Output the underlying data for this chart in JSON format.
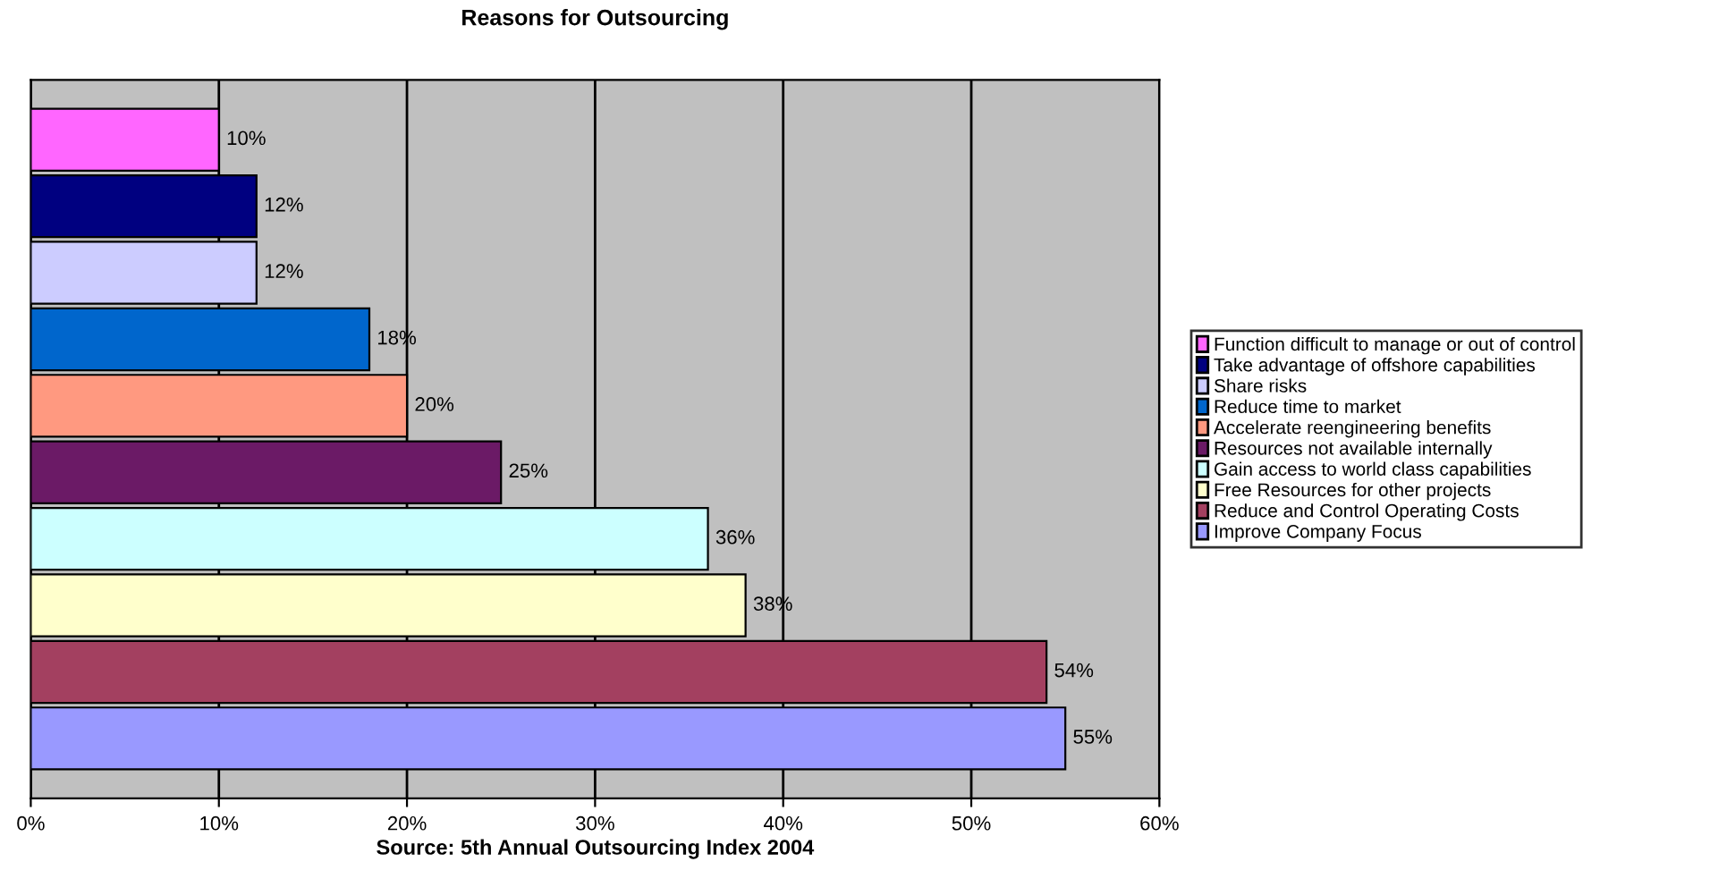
{
  "chart_data": {
    "type": "bar",
    "orientation": "horizontal",
    "title": "Reasons for Outsourcing",
    "xlabel": "Source: 5th Annual Outsourcing Index 2004",
    "categories": [
      null,
      null,
      null,
      null,
      null,
      null,
      null,
      null,
      null,
      null
    ],
    "series": [
      {
        "name": "Function difficult to manage or out of control",
        "color": "#ff66ff",
        "values": [
          10,
          null,
          null,
          null,
          null,
          null,
          null,
          null,
          null,
          null
        ],
        "value_labels": [
          "10%",
          null,
          null,
          null,
          null,
          null,
          null,
          null,
          null,
          null
        ]
      },
      {
        "name": "Take advantage of offshore capabilities",
        "color": "#000080",
        "values": [
          null,
          12,
          null,
          null,
          null,
          null,
          null,
          null,
          null,
          null
        ],
        "value_labels": [
          null,
          "12%",
          null,
          null,
          null,
          null,
          null,
          null,
          null,
          null
        ]
      },
      {
        "name": "Share risks",
        "color": "#ccccff",
        "values": [
          null,
          null,
          12,
          null,
          null,
          null,
          null,
          null,
          null,
          null
        ],
        "value_labels": [
          null,
          null,
          "12%",
          null,
          null,
          null,
          null,
          null,
          null,
          null
        ]
      },
      {
        "name": "Reduce time to market",
        "color": "#0066cc",
        "values": [
          null,
          null,
          null,
          18,
          null,
          null,
          null,
          null,
          null,
          null
        ],
        "value_labels": [
          null,
          null,
          null,
          "18%",
          null,
          null,
          null,
          null,
          null,
          null
        ]
      },
      {
        "name": "Accelerate reengineering benefits",
        "color": "#ff9980",
        "values": [
          null,
          null,
          null,
          null,
          20,
          null,
          null,
          null,
          null,
          null
        ],
        "value_labels": [
          null,
          null,
          null,
          null,
          "20%",
          null,
          null,
          null,
          null,
          null
        ]
      },
      {
        "name": "Resources not available internally",
        "color": "#6b1a66",
        "values": [
          null,
          null,
          null,
          null,
          null,
          25,
          null,
          null,
          null,
          null
        ],
        "value_labels": [
          null,
          null,
          null,
          null,
          null,
          "25%",
          null,
          null,
          null,
          null
        ]
      },
      {
        "name": "Gain access to world class capabilities",
        "color": "#ccffff",
        "values": [
          null,
          null,
          null,
          null,
          null,
          null,
          36,
          null,
          null,
          null
        ],
        "value_labels": [
          null,
          null,
          null,
          null,
          null,
          null,
          "36%",
          null,
          null,
          null
        ]
      },
      {
        "name": "Free Resources for other projects",
        "color": "#ffffcc",
        "values": [
          null,
          null,
          null,
          null,
          null,
          null,
          null,
          38,
          null,
          null
        ],
        "value_labels": [
          null,
          null,
          null,
          null,
          null,
          null,
          null,
          "38%",
          null,
          null
        ]
      },
      {
        "name": "Reduce and Control Operating Costs",
        "color": "#a34060",
        "values": [
          null,
          null,
          null,
          null,
          null,
          null,
          null,
          null,
          54,
          null
        ],
        "value_labels": [
          null,
          null,
          null,
          null,
          null,
          null,
          null,
          null,
          "54%",
          null
        ]
      },
      {
        "name": "Improve Company Focus",
        "color": "#9999ff",
        "values": [
          null,
          null,
          null,
          null,
          null,
          null,
          null,
          null,
          null,
          55
        ],
        "value_labels": [
          null,
          null,
          null,
          null,
          null,
          null,
          null,
          null,
          null,
          "55%"
        ]
      }
    ],
    "xlim": [
      0,
      60
    ],
    "xticks": [
      {
        "value": 0,
        "label": "0%"
      },
      {
        "value": 10,
        "label": "10%"
      },
      {
        "value": 20,
        "label": "20%"
      },
      {
        "value": 30,
        "label": "30%"
      },
      {
        "value": 40,
        "label": "40%"
      },
      {
        "value": 50,
        "label": "50%"
      },
      {
        "value": 60,
        "label": "60%"
      }
    ],
    "grid": "x",
    "legend": "right",
    "tick_labels": "x"
  }
}
